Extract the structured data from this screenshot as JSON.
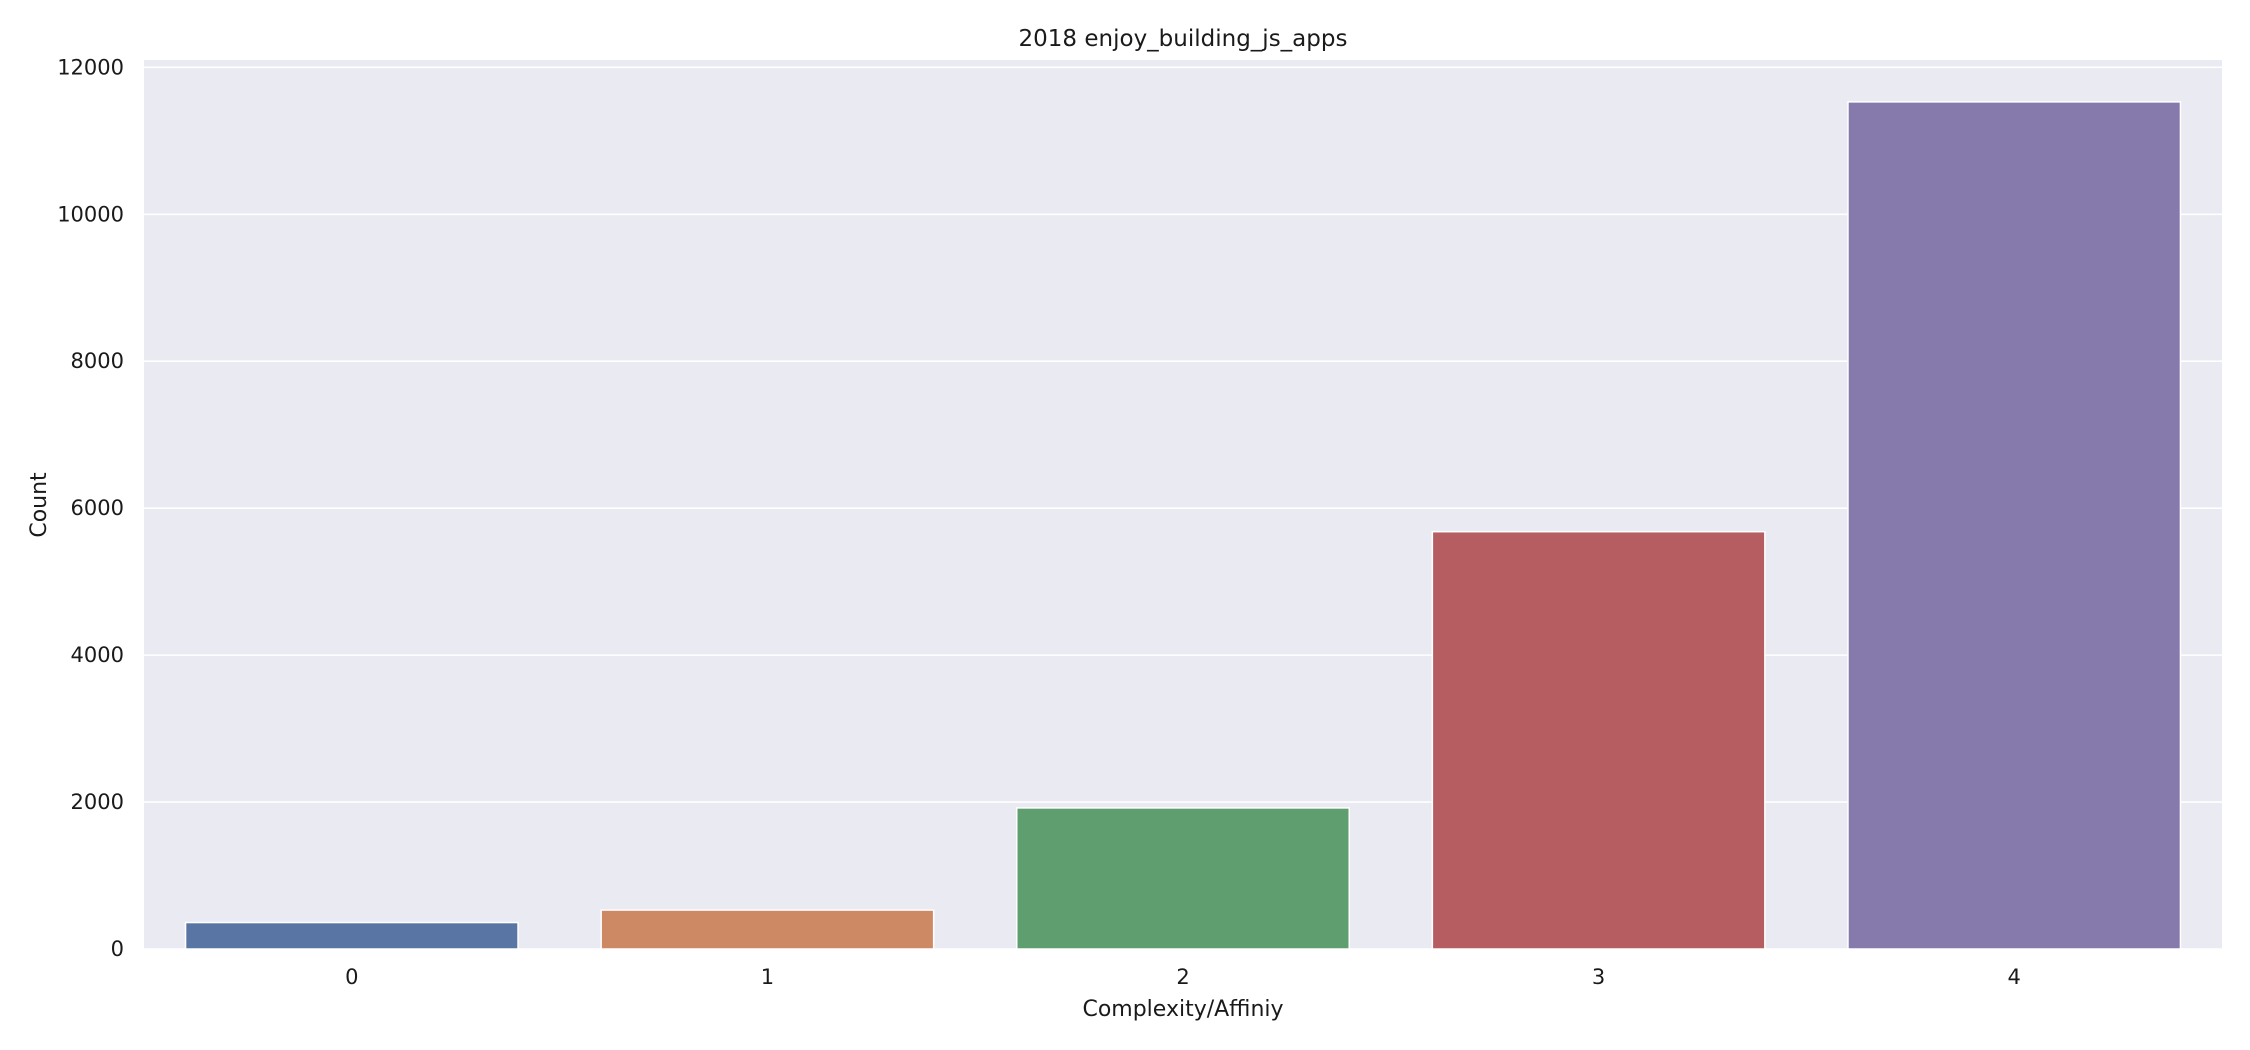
{
  "chart_data": {
    "type": "bar",
    "title": "2018 enjoy_building_js_apps",
    "xlabel": "Complexity/Affiniy",
    "ylabel": "Count",
    "categories": [
      "0",
      "1",
      "2",
      "3",
      "4"
    ],
    "values": [
      360,
      530,
      1920,
      5680,
      11530
    ],
    "ylim": [
      0,
      12100
    ],
    "yticks": [
      0,
      2000,
      4000,
      6000,
      8000,
      10000,
      12000
    ],
    "grid": true,
    "legend": "none",
    "colors": [
      "#5975a4",
      "#cc8963",
      "#5f9e6e",
      "#b55d60",
      "#857aab"
    ],
    "background": "#eaeaf2",
    "gridcolor": "#ffffff"
  }
}
